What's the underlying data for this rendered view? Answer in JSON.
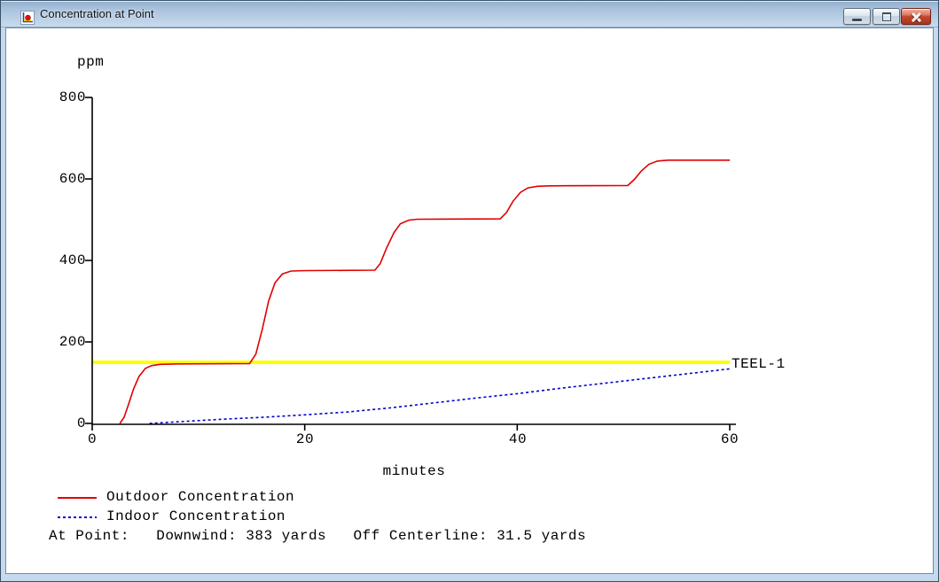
{
  "window": {
    "title": "Concentration at Point",
    "icon_name": "concentration-chart-icon",
    "controls": [
      {
        "name": "minimize"
      },
      {
        "name": "restore"
      },
      {
        "name": "close"
      }
    ]
  },
  "chart_data": {
    "type": "line",
    "title": "",
    "ylabel": "ppm",
    "xlabel": "minutes",
    "xlim": [
      0,
      60
    ],
    "ylim": [
      0,
      800
    ],
    "xticks": [
      0,
      20,
      40,
      60
    ],
    "yticks": [
      0,
      200,
      400,
      600,
      800
    ],
    "grid": false,
    "legend_position": "bottom-left",
    "threshold": {
      "label": "TEEL-1",
      "value": 150,
      "color": "#ffff00"
    },
    "series": [
      {
        "name": "Outdoor Concentration",
        "color": "#e00000",
        "style": "solid",
        "points_t_ppm": [
          [
            2.6,
            0
          ],
          [
            3.0,
            15
          ],
          [
            3.4,
            45
          ],
          [
            3.9,
            85
          ],
          [
            4.4,
            115
          ],
          [
            5.0,
            135
          ],
          [
            5.6,
            142
          ],
          [
            6.4,
            145
          ],
          [
            8.0,
            146
          ],
          [
            14.8,
            147
          ],
          [
            15.4,
            170
          ],
          [
            16.0,
            230
          ],
          [
            16.6,
            300
          ],
          [
            17.2,
            345
          ],
          [
            17.9,
            367
          ],
          [
            18.7,
            374
          ],
          [
            20.0,
            375
          ],
          [
            26.6,
            376
          ],
          [
            27.1,
            392
          ],
          [
            27.7,
            430
          ],
          [
            28.4,
            468
          ],
          [
            29.0,
            490
          ],
          [
            29.8,
            499
          ],
          [
            30.6,
            501
          ],
          [
            38.4,
            502
          ],
          [
            39.0,
            518
          ],
          [
            39.6,
            545
          ],
          [
            40.3,
            567
          ],
          [
            41.0,
            578
          ],
          [
            41.9,
            582
          ],
          [
            43.0,
            583
          ],
          [
            50.4,
            584
          ],
          [
            51.0,
            598
          ],
          [
            51.7,
            620
          ],
          [
            52.4,
            636
          ],
          [
            53.2,
            644
          ],
          [
            54.2,
            646
          ],
          [
            60.0,
            646
          ]
        ]
      },
      {
        "name": "Indoor Concentration",
        "color": "#0000cc",
        "style": "dashed",
        "points_t_ppm": [
          [
            5.4,
            0
          ],
          [
            8.0,
            4
          ],
          [
            12.0,
            10
          ],
          [
            16.0,
            15
          ],
          [
            20.0,
            21
          ],
          [
            24.0,
            28
          ],
          [
            28.0,
            38
          ],
          [
            32.0,
            50
          ],
          [
            36.0,
            62
          ],
          [
            40.0,
            73
          ],
          [
            44.0,
            86
          ],
          [
            48.0,
            98
          ],
          [
            52.0,
            110
          ],
          [
            56.0,
            122
          ],
          [
            60.0,
            134
          ]
        ]
      }
    ]
  },
  "footer": {
    "at_point_line": "At Point:   Downwind: 383 yards   Off Centerline: 31.5 yards"
  }
}
